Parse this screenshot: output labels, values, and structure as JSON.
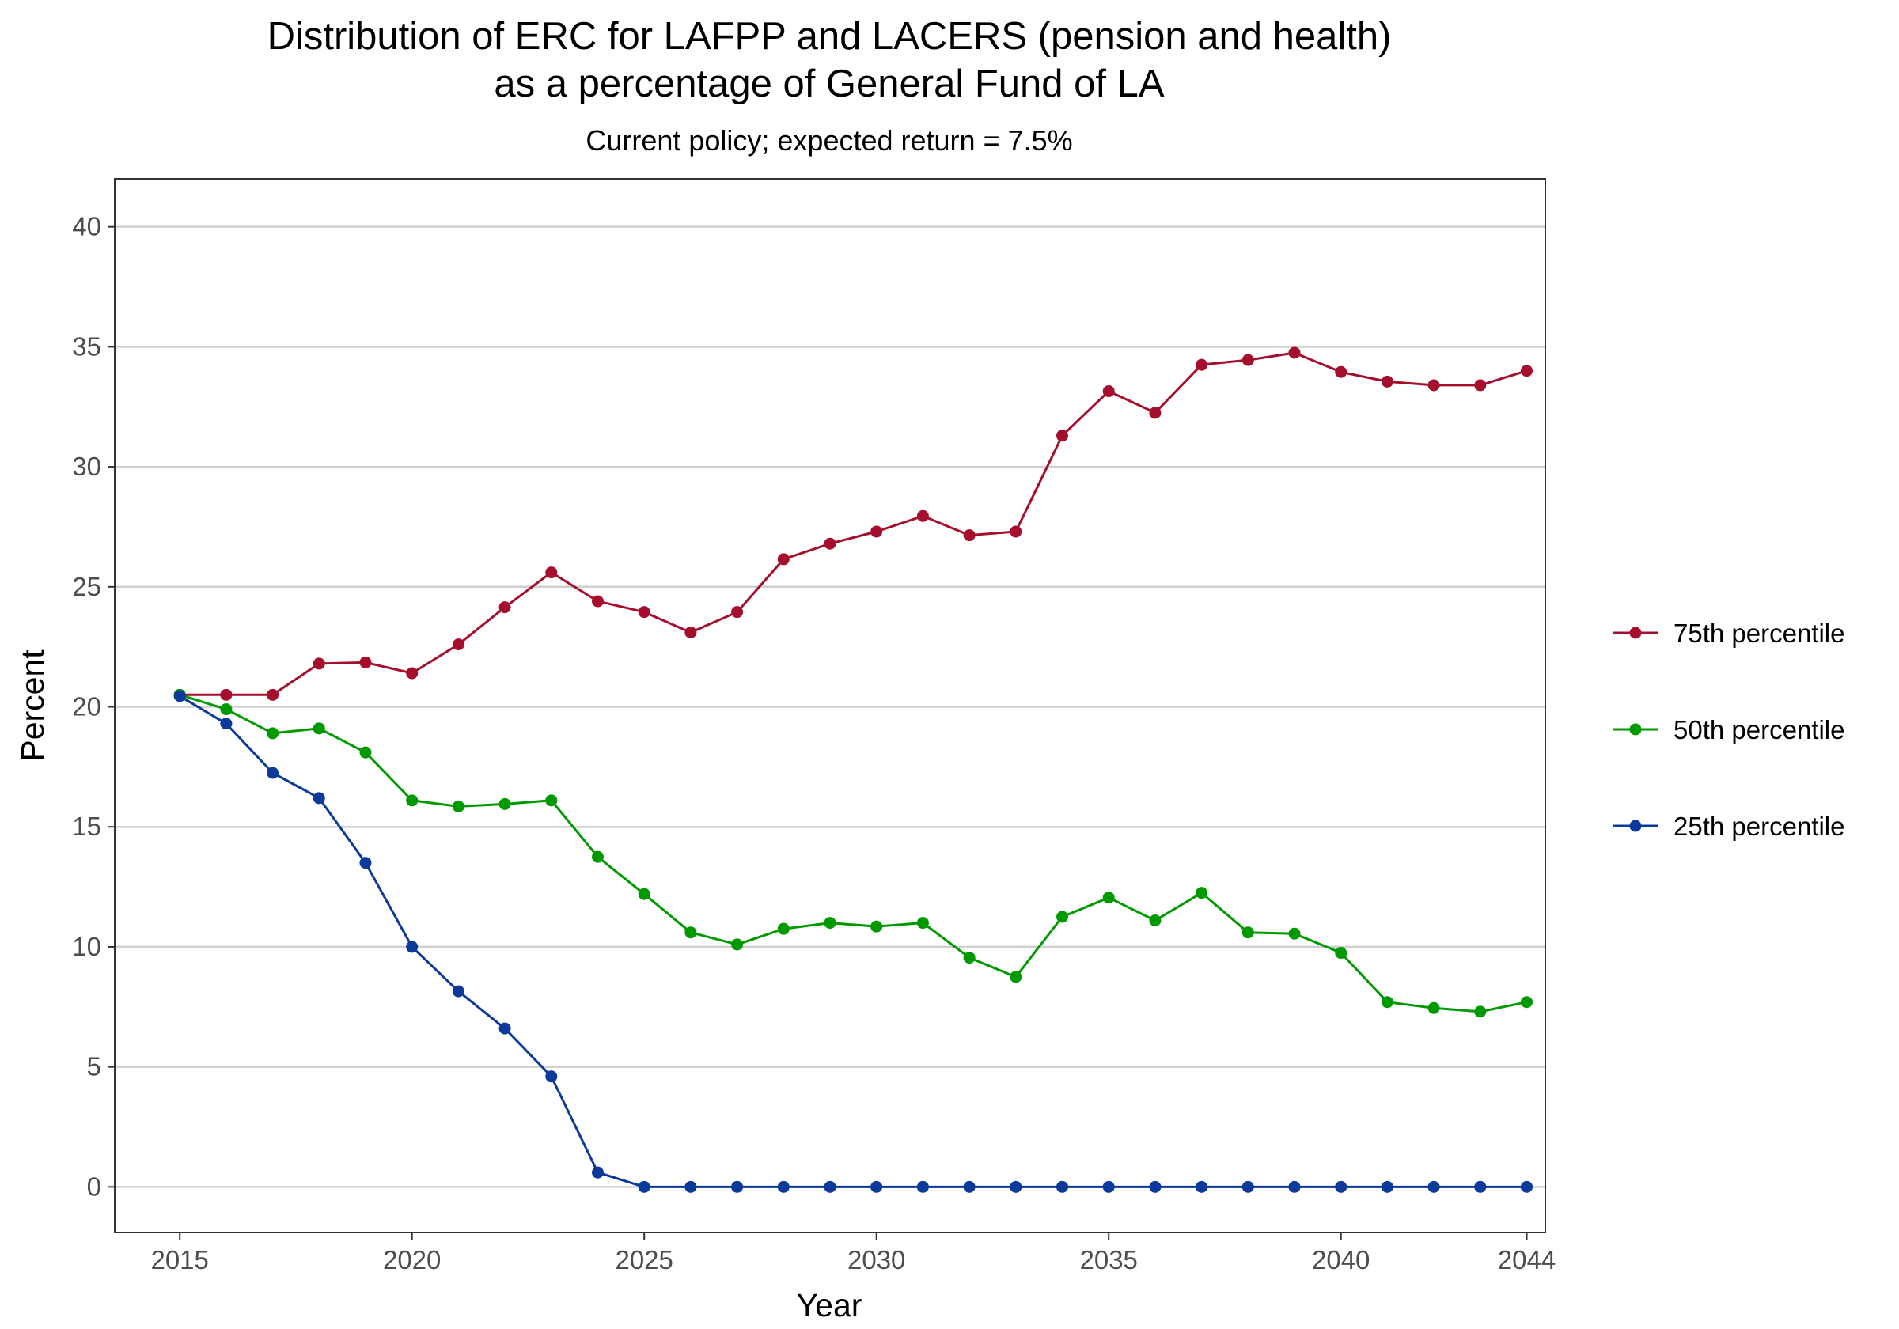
{
  "chart_data": {
    "type": "line",
    "title_line1": "Distribution of ERC for LAFPP and LACERS (pension and health)",
    "title_line2": "as a percentage of General Fund of LA",
    "subtitle": "Current policy; expected return = 7.5%",
    "xlabel": "Year",
    "ylabel": "Percent",
    "xlim": [
      2013.6,
      2044.4
    ],
    "ylim": [
      -1.9,
      42
    ],
    "x_ticks": [
      "2015",
      "2020",
      "2025",
      "2030",
      "2035",
      "2040",
      "2044"
    ],
    "y_ticks": [
      "0",
      "5",
      "10",
      "15",
      "20",
      "25",
      "30",
      "35",
      "40"
    ],
    "grid": "horizontal major lines",
    "legend_position": "right",
    "x": [
      2015,
      2016,
      2017,
      2018,
      2019,
      2020,
      2021,
      2022,
      2023,
      2024,
      2025,
      2026,
      2027,
      2028,
      2029,
      2030,
      2031,
      2032,
      2033,
      2034,
      2035,
      2036,
      2037,
      2038,
      2039,
      2040,
      2041,
      2042,
      2043,
      2044
    ],
    "series": [
      {
        "name": "75th percentile",
        "color": "#a50f2d",
        "values": [
          20.5,
          20.5,
          20.5,
          21.8,
          21.85,
          21.4,
          22.6,
          24.15,
          25.6,
          24.4,
          23.95,
          23.1,
          23.95,
          26.15,
          26.8,
          27.3,
          27.95,
          27.15,
          27.3,
          31.3,
          33.15,
          32.25,
          34.25,
          34.45,
          34.75,
          33.95,
          33.55,
          33.4,
          33.4,
          34.0
        ]
      },
      {
        "name": "50th percentile",
        "color": "#009a00",
        "values": [
          20.5,
          19.9,
          18.9,
          19.1,
          18.1,
          16.1,
          15.85,
          15.95,
          16.1,
          13.75,
          12.2,
          10.6,
          10.1,
          10.75,
          11.0,
          10.85,
          11.0,
          9.55,
          8.75,
          11.25,
          12.05,
          11.1,
          12.25,
          10.6,
          10.55,
          9.75,
          7.7,
          7.45,
          7.3,
          7.7
        ]
      },
      {
        "name": "25th percentile",
        "color": "#0b3a9a",
        "values": [
          20.45,
          19.3,
          17.25,
          16.2,
          13.5,
          10.0,
          8.15,
          6.6,
          4.6,
          0.6,
          0.0,
          0.0,
          0.0,
          0.0,
          0.0,
          0.0,
          0.0,
          0.0,
          0.0,
          0.0,
          0.0,
          0.0,
          0.0,
          0.0,
          0.0,
          0.0,
          0.0,
          0.0,
          0.0,
          0.0
        ]
      }
    ]
  }
}
